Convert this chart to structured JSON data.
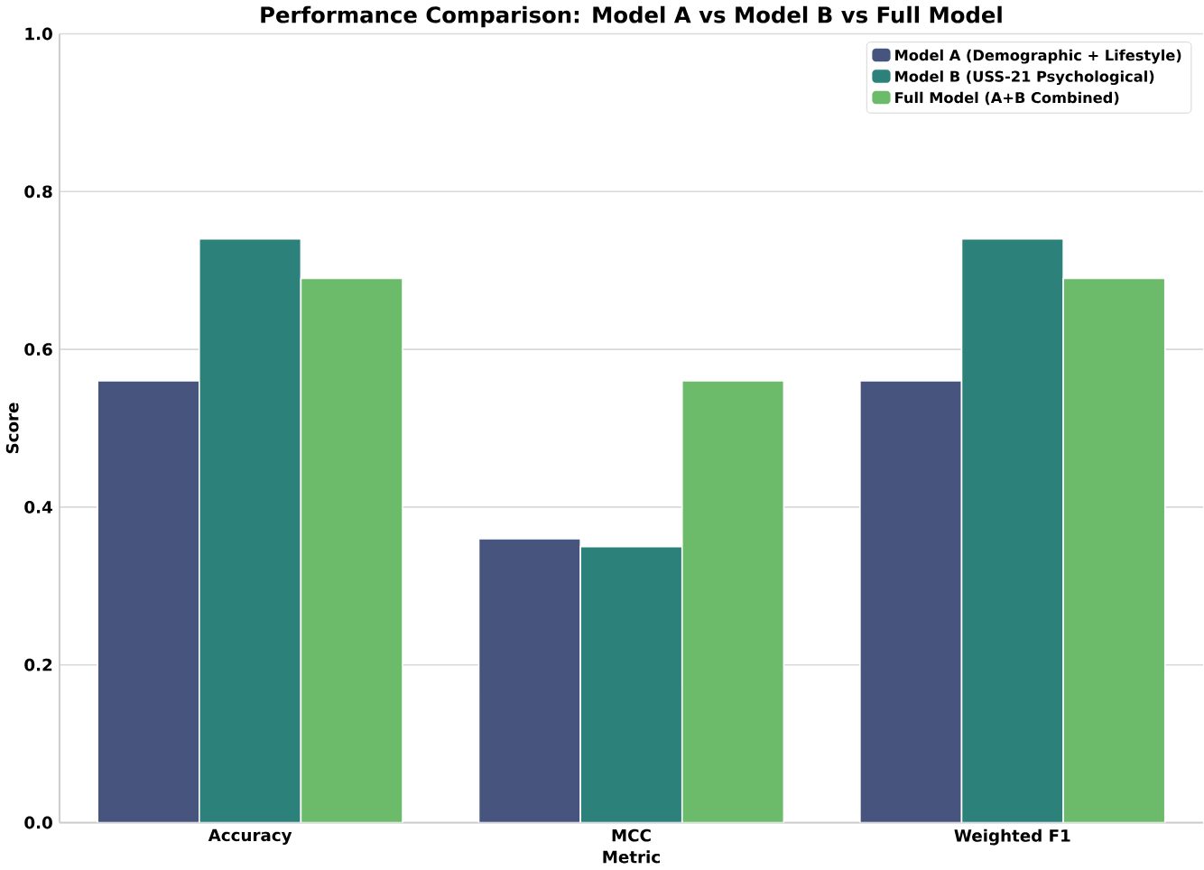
{
  "chart_data": {
    "type": "bar",
    "title": "Performance Comparison: Model A vs Model B vs Full Model",
    "xlabel": "Metric",
    "ylabel": "Score",
    "categories": [
      "Accuracy",
      "MCC",
      "Weighted F1"
    ],
    "series": [
      {
        "name": "Model A (Demographic + Lifestyle)",
        "color": "#46547e",
        "values": [
          0.56,
          0.36,
          0.56
        ]
      },
      {
        "name": "Model B (USS-21 Psychological)",
        "color": "#2d817b",
        "values": [
          0.74,
          0.35,
          0.74
        ]
      },
      {
        "name": "Full Model (A+B Combined)",
        "color": "#6bbb6b",
        "values": [
          0.69,
          0.56,
          0.69
        ]
      }
    ],
    "ylim": [
      0,
      1.0
    ],
    "yticks": [
      {
        "value": 0,
        "label": "0.0"
      },
      0.2,
      0.4,
      0.6,
      0.8,
      {
        "value": 1,
        "label": "1.0"
      }
    ],
    "grid": "y",
    "legend": "top right"
  }
}
